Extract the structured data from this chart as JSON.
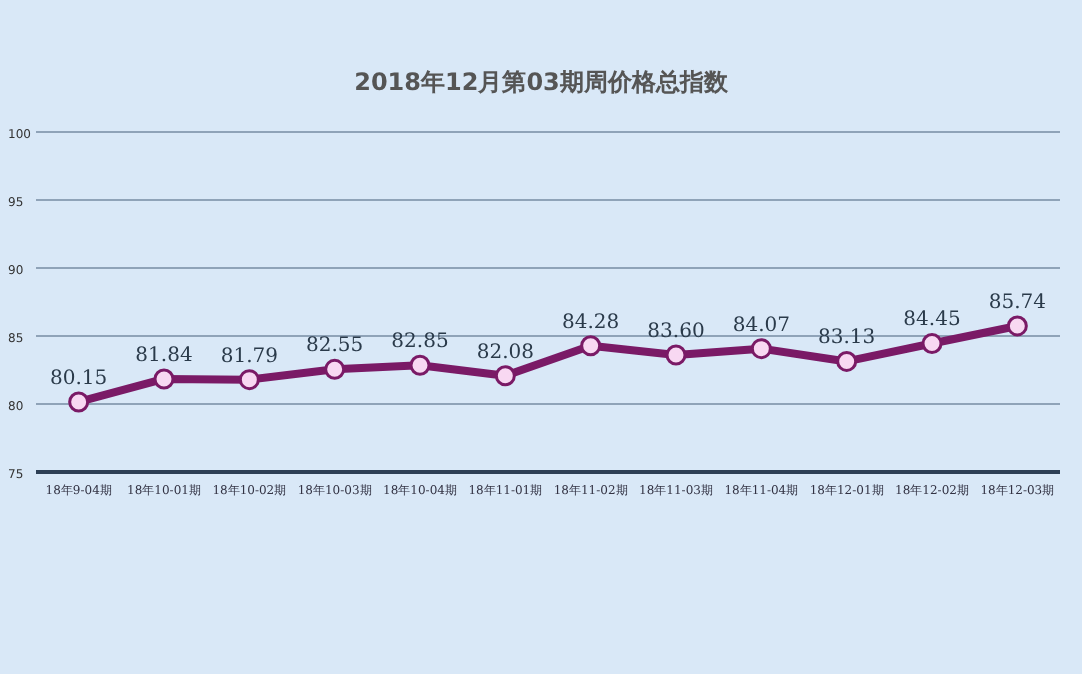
{
  "chart_data": {
    "type": "line",
    "title": "2018年12月第03期周价格总指数",
    "categories": [
      "18年9-04期",
      "18年10-01期",
      "18年10-02期",
      "18年10-03期",
      "18年10-04期",
      "18年11-01期",
      "18年11-02期",
      "18年11-03期",
      "18年11-04期",
      "18年12-01期",
      "18年12-02期",
      "18年12-03期"
    ],
    "series": [
      {
        "color": "#7a1a66",
        "values": [
          80.15,
          81.84,
          81.79,
          82.55,
          82.85,
          82.08,
          84.28,
          83.6,
          84.07,
          83.13,
          84.45,
          85.74
        ],
        "value_labels": [
          "80.15",
          "81.84",
          "81.79",
          "82.55",
          "82.85",
          "82.08",
          "84.28",
          "83.60",
          "84.07",
          "83.13",
          "84.45",
          "85.74"
        ]
      }
    ],
    "ylim": [
      75,
      100
    ],
    "yticks": [
      75,
      80,
      85,
      90,
      95,
      100
    ],
    "grid": "y",
    "marker": "circle",
    "line_style": "solid"
  }
}
